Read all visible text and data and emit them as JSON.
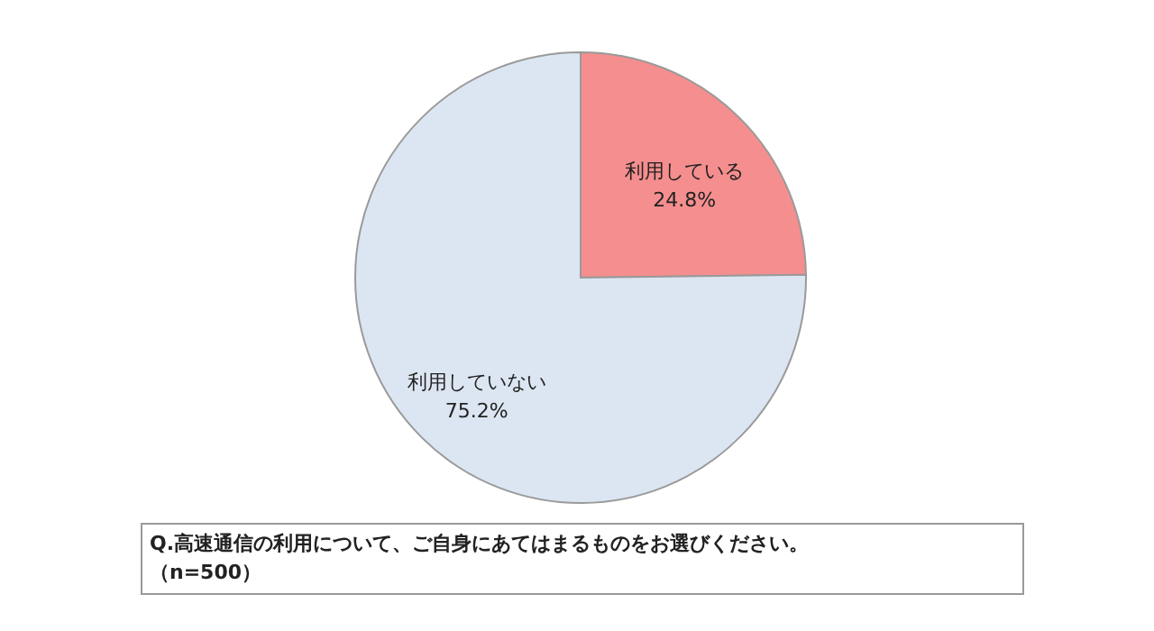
{
  "chart_data": {
    "type": "pie",
    "categories": [
      "利用している",
      "利用していない"
    ],
    "values": [
      24.8,
      75.2
    ],
    "colors": [
      "#f58e8e",
      "#dce6f2"
    ],
    "value_labels": [
      "24.8%",
      "75.2%"
    ],
    "legend": false,
    "annotations": [
      "Q.高速通信の利用について、ご自身にあてはまるものをお選びください。",
      "（n=500）"
    ]
  }
}
